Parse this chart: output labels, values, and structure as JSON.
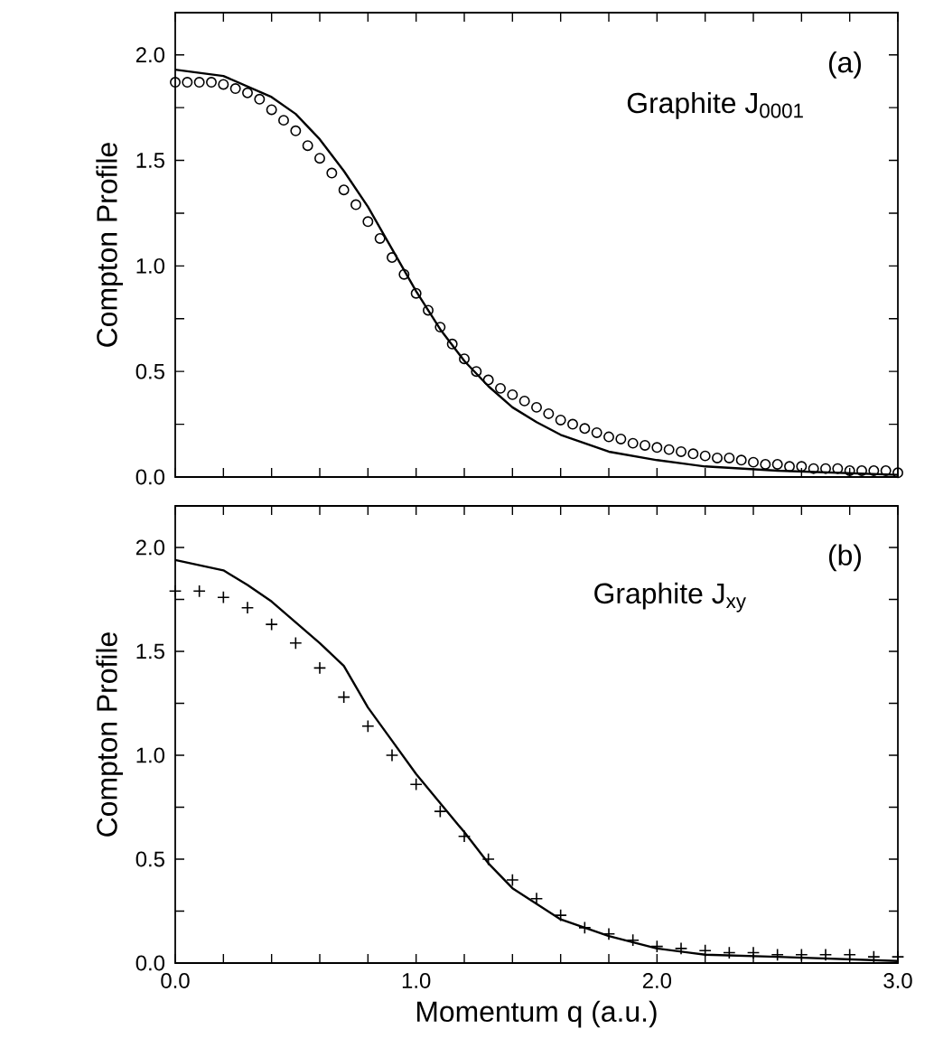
{
  "chart_data": [
    {
      "type": "line",
      "ylabel": "Compton Profile",
      "annotations": [
        "(a)",
        "Graphite  J$_{0001}$"
      ],
      "xlim": [
        0,
        3
      ],
      "ylim": [
        0,
        2.2
      ],
      "tick_labels": "y",
      "xticks": [
        {
          "value": 0,
          "label": null
        },
        {
          "value": 0.2,
          "label": null
        },
        {
          "value": 0.4,
          "label": null
        },
        {
          "value": 0.6,
          "label": null
        },
        {
          "value": 0.8,
          "label": null
        },
        {
          "value": 1,
          "label": null
        },
        {
          "value": 1.2,
          "label": null
        },
        {
          "value": 1.4,
          "label": null
        },
        {
          "value": 1.6,
          "label": null
        },
        {
          "value": 1.8,
          "label": null
        },
        {
          "value": 2,
          "label": null
        },
        {
          "value": 2.2,
          "label": null
        },
        {
          "value": 2.4,
          "label": null
        },
        {
          "value": 2.6,
          "label": null
        },
        {
          "value": 2.8,
          "label": null
        },
        {
          "value": 3,
          "label": null
        }
      ],
      "yticks": [
        {
          "value": 0,
          "label": "0.0"
        },
        {
          "value": 0.25,
          "label": null
        },
        {
          "value": 0.5,
          "label": "0.5"
        },
        {
          "value": 0.75,
          "label": null
        },
        {
          "value": 1,
          "label": "1.0"
        },
        {
          "value": 1.25,
          "label": null
        },
        {
          "value": 1.5,
          "label": "1.5"
        },
        {
          "value": 1.75,
          "label": null
        },
        {
          "value": 2,
          "label": "2.0"
        }
      ],
      "series": [
        {
          "type": "line",
          "color": "#000000",
          "marker": "none",
          "line_style": "solid",
          "x": [
            0,
            0.2,
            0.4,
            0.5,
            0.6,
            0.7,
            0.8,
            0.9,
            1.0,
            1.1,
            1.2,
            1.3,
            1.4,
            1.5,
            1.6,
            1.8,
            2.0,
            2.2,
            2.5,
            3.0
          ],
          "values": [
            1.93,
            1.9,
            1.8,
            1.72,
            1.6,
            1.45,
            1.28,
            1.08,
            0.88,
            0.7,
            0.55,
            0.43,
            0.33,
            0.26,
            0.2,
            0.12,
            0.08,
            0.05,
            0.03,
            0.01
          ]
        },
        {
          "type": "scatter",
          "color": "#000000",
          "marker": "circle",
          "x": [
            0,
            0.05,
            0.1,
            0.15,
            0.2,
            0.25,
            0.3,
            0.35,
            0.4,
            0.45,
            0.5,
            0.55,
            0.6,
            0.65,
            0.7,
            0.75,
            0.8,
            0.85,
            0.9,
            0.95,
            1.0,
            1.05,
            1.1,
            1.15,
            1.2,
            1.25,
            1.3,
            1.35,
            1.4,
            1.45,
            1.5,
            1.55,
            1.6,
            1.65,
            1.7,
            1.75,
            1.8,
            1.85,
            1.9,
            1.95,
            2.0,
            2.05,
            2.1,
            2.15,
            2.2,
            2.25,
            2.3,
            2.35,
            2.4,
            2.45,
            2.5,
            2.55,
            2.6,
            2.65,
            2.7,
            2.75,
            2.8,
            2.85,
            2.9,
            2.95,
            3.0
          ],
          "values": [
            1.87,
            1.87,
            1.87,
            1.87,
            1.86,
            1.84,
            1.82,
            1.79,
            1.74,
            1.69,
            1.64,
            1.57,
            1.51,
            1.44,
            1.36,
            1.29,
            1.21,
            1.13,
            1.04,
            0.96,
            0.87,
            0.79,
            0.71,
            0.63,
            0.56,
            0.5,
            0.46,
            0.42,
            0.39,
            0.36,
            0.33,
            0.3,
            0.27,
            0.25,
            0.23,
            0.21,
            0.19,
            0.18,
            0.16,
            0.15,
            0.14,
            0.13,
            0.12,
            0.11,
            0.1,
            0.09,
            0.09,
            0.08,
            0.07,
            0.06,
            0.06,
            0.05,
            0.05,
            0.04,
            0.04,
            0.04,
            0.03,
            0.03,
            0.03,
            0.03,
            0.02
          ]
        }
      ]
    },
    {
      "type": "line",
      "xlabel": "Momentum q (a.u.)",
      "ylabel": "Compton Profile",
      "annotations": [
        "(b)",
        "Graphite  J$_{xy}$"
      ],
      "xlim": [
        0,
        3
      ],
      "ylim": [
        0,
        2.2
      ],
      "xticks": [
        {
          "value": 0,
          "label": "0.0"
        },
        {
          "value": 0.2,
          "label": null
        },
        {
          "value": 0.4,
          "label": null
        },
        {
          "value": 0.6,
          "label": null
        },
        {
          "value": 0.8,
          "label": null
        },
        {
          "value": 1,
          "label": "1.0"
        },
        {
          "value": 1.2,
          "label": null
        },
        {
          "value": 1.4,
          "label": null
        },
        {
          "value": 1.6,
          "label": null
        },
        {
          "value": 1.8,
          "label": null
        },
        {
          "value": 2,
          "label": "2.0"
        },
        {
          "value": 2.2,
          "label": null
        },
        {
          "value": 2.4,
          "label": null
        },
        {
          "value": 2.6,
          "label": null
        },
        {
          "value": 2.8,
          "label": null
        },
        {
          "value": 3,
          "label": "3.0"
        }
      ],
      "yticks": [
        {
          "value": 0,
          "label": "0.0"
        },
        {
          "value": 0.25,
          "label": null
        },
        {
          "value": 0.5,
          "label": "0.5"
        },
        {
          "value": 0.75,
          "label": null
        },
        {
          "value": 1,
          "label": "1.0"
        },
        {
          "value": 1.25,
          "label": null
        },
        {
          "value": 1.5,
          "label": "1.5"
        },
        {
          "value": 1.75,
          "label": null
        },
        {
          "value": 2,
          "label": "2.0"
        }
      ],
      "series": [
        {
          "type": "line",
          "color": "#000000",
          "marker": "none",
          "line_style": "solid",
          "x": [
            0,
            0.2,
            0.3,
            0.4,
            0.5,
            0.6,
            0.7,
            0.8,
            0.9,
            1.0,
            1.1,
            1.2,
            1.3,
            1.4,
            1.6,
            1.8,
            2.0,
            2.2,
            2.5,
            3.0
          ],
          "values": [
            1.94,
            1.89,
            1.82,
            1.74,
            1.64,
            1.54,
            1.43,
            1.23,
            1.07,
            0.91,
            0.77,
            0.63,
            0.48,
            0.36,
            0.21,
            0.13,
            0.07,
            0.04,
            0.03,
            0.01
          ]
        },
        {
          "type": "scatter",
          "color": "#000000",
          "marker": "cross",
          "x": [
            0,
            0.1,
            0.2,
            0.3,
            0.4,
            0.5,
            0.6,
            0.7,
            0.8,
            0.9,
            1.0,
            1.1,
            1.2,
            1.3,
            1.4,
            1.5,
            1.6,
            1.7,
            1.8,
            1.9,
            2.0,
            2.1,
            2.2,
            2.3,
            2.4,
            2.5,
            2.6,
            2.7,
            2.8,
            2.9,
            3.0
          ],
          "values": [
            1.79,
            1.79,
            1.76,
            1.71,
            1.63,
            1.54,
            1.42,
            1.28,
            1.14,
            1.0,
            0.86,
            0.73,
            0.61,
            0.5,
            0.4,
            0.31,
            0.23,
            0.17,
            0.14,
            0.11,
            0.08,
            0.07,
            0.06,
            0.05,
            0.05,
            0.04,
            0.04,
            0.04,
            0.04,
            0.03,
            0.03
          ]
        }
      ]
    }
  ]
}
